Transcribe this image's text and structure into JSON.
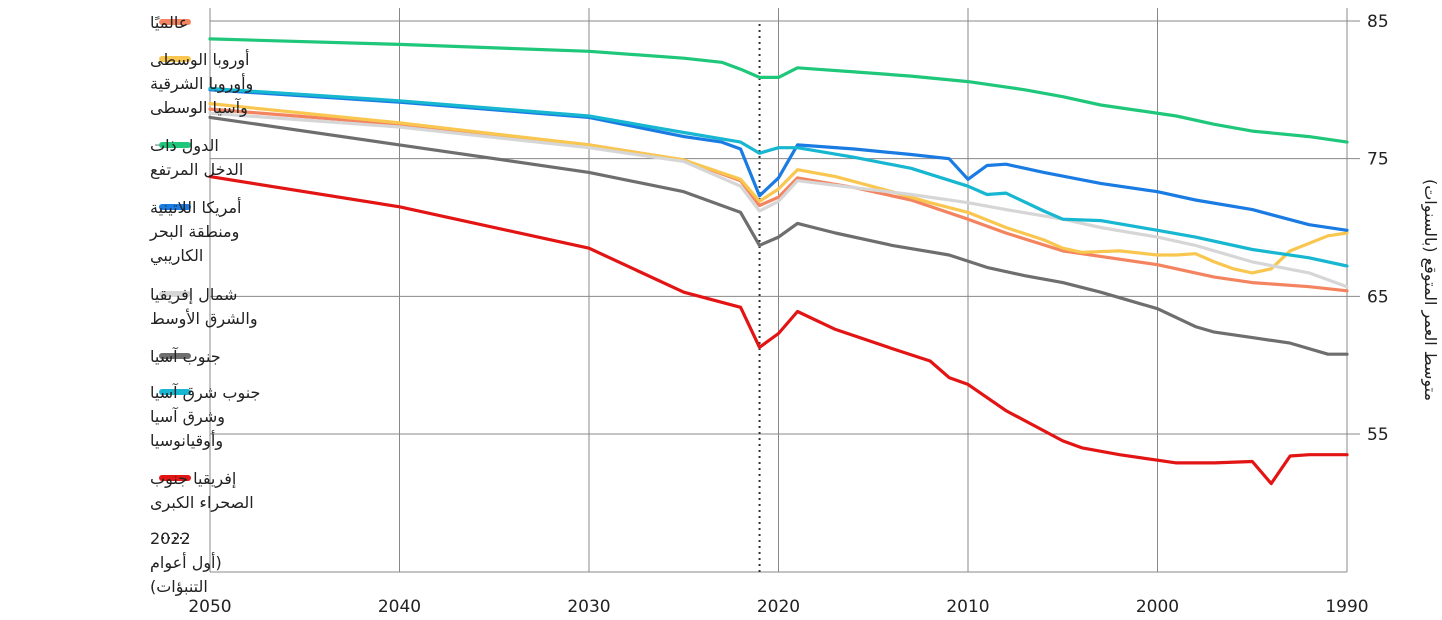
{
  "chart_data": {
    "type": "line",
    "title": "",
    "xlabel": "",
    "ylabel": "متوسط العمر المتوقع (بالسنوات)",
    "xlim": [
      1990,
      2050
    ],
    "ylim": [
      44,
      85
    ],
    "x_ticks": [
      2050,
      2040,
      2030,
      2020,
      2010,
      2000,
      1990
    ],
    "x_tick_labels": [
      "2050",
      "2040",
      "2030",
      "2020",
      "2010",
      "2000",
      "1990"
    ],
    "y_ticks": [
      85,
      75,
      65,
      55
    ],
    "y_tick_labels": [
      "85",
      "75",
      "65",
      "55"
    ],
    "grid": true,
    "x_axis_reversed": true,
    "y_axis_side": "right",
    "legend_position": "left",
    "marker_line": {
      "x": 2021,
      "style": "dotted",
      "label": [
        "2022",
        "(أول أعوام",
        "التنبؤات)"
      ]
    },
    "series": [
      {
        "name": "عالميًا",
        "legend_lines": [
          "عالميًا"
        ],
        "color": "#f4845f",
        "points": [
          [
            1990,
            65.4
          ],
          [
            1992,
            65.7
          ],
          [
            1995,
            66.0
          ],
          [
            1997,
            66.4
          ],
          [
            2000,
            67.3
          ],
          [
            2003,
            67.9
          ],
          [
            2005,
            68.3
          ],
          [
            2008,
            69.6
          ],
          [
            2010,
            70.6
          ],
          [
            2013,
            72.0
          ],
          [
            2016,
            72.9
          ],
          [
            2019,
            73.6
          ],
          [
            2020,
            72.2
          ],
          [
            2021,
            71.6
          ],
          [
            2022,
            73.4
          ],
          [
            2025,
            74.9
          ],
          [
            2030,
            76.0
          ],
          [
            2040,
            77.5
          ],
          [
            2050,
            78.6
          ]
        ]
      },
      {
        "name": "أوروبا الوسطى وأوروبا الشرقية وآسيا الوسطى",
        "legend_lines": [
          "أوروبا الوسطى",
          "وأوروبا الشرقية",
          "وآسيا الوسطى"
        ],
        "color": "#f9c74f",
        "points": [
          [
            1990,
            69.6
          ],
          [
            1991,
            69.4
          ],
          [
            1993,
            68.3
          ],
          [
            1994,
            67.0
          ],
          [
            1995,
            66.7
          ],
          [
            1996,
            67.0
          ],
          [
            1997,
            67.5
          ],
          [
            1998,
            68.1
          ],
          [
            1999,
            68.0
          ],
          [
            2000,
            68.0
          ],
          [
            2002,
            68.3
          ],
          [
            2004,
            68.2
          ],
          [
            2005,
            68.5
          ],
          [
            2006,
            69.1
          ],
          [
            2008,
            70.0
          ],
          [
            2010,
            71.1
          ],
          [
            2012,
            71.8
          ],
          [
            2014,
            72.6
          ],
          [
            2017,
            73.7
          ],
          [
            2019,
            74.2
          ],
          [
            2020,
            72.8
          ],
          [
            2021,
            71.9
          ],
          [
            2022,
            73.5
          ],
          [
            2025,
            74.9
          ],
          [
            2030,
            76.0
          ],
          [
            2040,
            77.6
          ],
          [
            2050,
            79.0
          ]
        ]
      },
      {
        "name": "الدول ذات الدخل المرتفع",
        "legend_lines": [
          "الدول ذات",
          "الدخل المرتفع"
        ],
        "color": "#1fc77a",
        "points": [
          [
            1990,
            76.2
          ],
          [
            1992,
            76.6
          ],
          [
            1995,
            77.0
          ],
          [
            1997,
            77.5
          ],
          [
            1999,
            78.1
          ],
          [
            2001,
            78.5
          ],
          [
            2003,
            78.9
          ],
          [
            2005,
            79.5
          ],
          [
            2007,
            80.0
          ],
          [
            2010,
            80.6
          ],
          [
            2013,
            81.0
          ],
          [
            2016,
            81.3
          ],
          [
            2018,
            81.5
          ],
          [
            2019,
            81.6
          ],
          [
            2020,
            80.9
          ],
          [
            2021,
            80.9
          ],
          [
            2022,
            81.5
          ],
          [
            2023,
            82.0
          ],
          [
            2025,
            82.3
          ],
          [
            2030,
            82.8
          ],
          [
            2040,
            83.3
          ],
          [
            2050,
            83.7
          ]
        ]
      },
      {
        "name": "أمريكا اللاتينية ومنطقة البحر الكاريبي",
        "legend_lines": [
          "أمريكا اللاتينية",
          "ومنطقة البحر",
          "الكاريبي"
        ],
        "color": "#1a7be3",
        "points": [
          [
            1990,
            69.8
          ],
          [
            1992,
            70.2
          ],
          [
            1995,
            71.3
          ],
          [
            1998,
            72.0
          ],
          [
            2000,
            72.6
          ],
          [
            2003,
            73.2
          ],
          [
            2006,
            74.0
          ],
          [
            2008,
            74.6
          ],
          [
            2009,
            74.5
          ],
          [
            2010,
            73.5
          ],
          [
            2011,
            75.0
          ],
          [
            2013,
            75.3
          ],
          [
            2016,
            75.7
          ],
          [
            2019,
            76.0
          ],
          [
            2020,
            73.6
          ],
          [
            2021,
            72.3
          ],
          [
            2022,
            75.7
          ],
          [
            2023,
            76.2
          ],
          [
            2025,
            76.6
          ],
          [
            2030,
            78.0
          ],
          [
            2040,
            79.1
          ],
          [
            2050,
            80.0
          ]
        ]
      },
      {
        "name": "شمال إفريقيا والشرق الأوسط",
        "legend_lines": [
          "شمال إفريقيا",
          "والشرق الأوسط"
        ],
        "color": "#d6d6d6",
        "points": [
          [
            1990,
            65.7
          ],
          [
            1992,
            66.7
          ],
          [
            1995,
            67.5
          ],
          [
            1998,
            68.7
          ],
          [
            2000,
            69.3
          ],
          [
            2003,
            70.0
          ],
          [
            2005,
            70.6
          ],
          [
            2008,
            71.3
          ],
          [
            2010,
            71.8
          ],
          [
            2013,
            72.4
          ],
          [
            2016,
            72.9
          ],
          [
            2019,
            73.4
          ],
          [
            2020,
            71.9
          ],
          [
            2021,
            71.2
          ],
          [
            2022,
            73.0
          ],
          [
            2025,
            74.8
          ],
          [
            2030,
            75.8
          ],
          [
            2040,
            77.3
          ],
          [
            2050,
            78.3
          ]
        ]
      },
      {
        "name": "جنوب آسيا",
        "legend_lines": [
          "جنوب آسيا"
        ],
        "color": "#6e6e6e",
        "points": [
          [
            1990,
            60.8
          ],
          [
            1991,
            60.8
          ],
          [
            1993,
            61.6
          ],
          [
            1995,
            62.0
          ],
          [
            1997,
            62.4
          ],
          [
            1998,
            62.8
          ],
          [
            2000,
            64.1
          ],
          [
            2003,
            65.3
          ],
          [
            2005,
            66.0
          ],
          [
            2007,
            66.5
          ],
          [
            2009,
            67.1
          ],
          [
            2011,
            68.0
          ],
          [
            2014,
            68.7
          ],
          [
            2017,
            69.6
          ],
          [
            2019,
            70.3
          ],
          [
            2020,
            69.3
          ],
          [
            2021,
            68.7
          ],
          [
            2022,
            71.1
          ],
          [
            2025,
            72.6
          ],
          [
            2030,
            74.0
          ],
          [
            2040,
            76.0
          ],
          [
            2050,
            78.0
          ]
        ]
      },
      {
        "name": "جنوب شرق آسيا وشرق آسيا وأوقيانوسيا",
        "legend_lines": [
          "جنوب شرق آسيا",
          "وشرق آسيا",
          "وأوقيانوسيا"
        ],
        "color": "#17b6d1",
        "points": [
          [
            1990,
            67.2
          ],
          [
            1992,
            67.8
          ],
          [
            1995,
            68.4
          ],
          [
            1998,
            69.3
          ],
          [
            2000,
            69.8
          ],
          [
            2003,
            70.5
          ],
          [
            2005,
            70.6
          ],
          [
            2006,
            71.2
          ],
          [
            2008,
            72.5
          ],
          [
            2009,
            72.4
          ],
          [
            2010,
            73.0
          ],
          [
            2013,
            74.3
          ],
          [
            2016,
            75.1
          ],
          [
            2019,
            75.8
          ],
          [
            2020,
            75.8
          ],
          [
            2021,
            75.4
          ],
          [
            2022,
            76.2
          ],
          [
            2025,
            76.9
          ],
          [
            2030,
            78.1
          ],
          [
            2040,
            79.2
          ],
          [
            2050,
            80.1
          ]
        ]
      },
      {
        "name": "إفريقيا جنوب الصحراء الكبرى",
        "legend_lines": [
          "إفريقيا جنوب",
          "الصحراء الكبرى"
        ],
        "color": "#e31414",
        "points": [
          [
            1990,
            53.5
          ],
          [
            1992,
            53.5
          ],
          [
            1993,
            53.4
          ],
          [
            1994,
            51.4
          ],
          [
            1995,
            53.0
          ],
          [
            1997,
            52.9
          ],
          [
            1999,
            52.9
          ],
          [
            2000,
            53.1
          ],
          [
            2002,
            53.5
          ],
          [
            2004,
            54.0
          ],
          [
            2005,
            54.5
          ],
          [
            2008,
            56.7
          ],
          [
            2010,
            58.6
          ],
          [
            2011,
            59.1
          ],
          [
            2012,
            60.3
          ],
          [
            2014,
            61.2
          ],
          [
            2017,
            62.6
          ],
          [
            2019,
            63.9
          ],
          [
            2020,
            62.3
          ],
          [
            2021,
            61.3
          ],
          [
            2022,
            64.2
          ],
          [
            2025,
            65.3
          ],
          [
            2030,
            68.5
          ],
          [
            2040,
            71.5
          ],
          [
            2050,
            73.7
          ]
        ]
      }
    ]
  }
}
